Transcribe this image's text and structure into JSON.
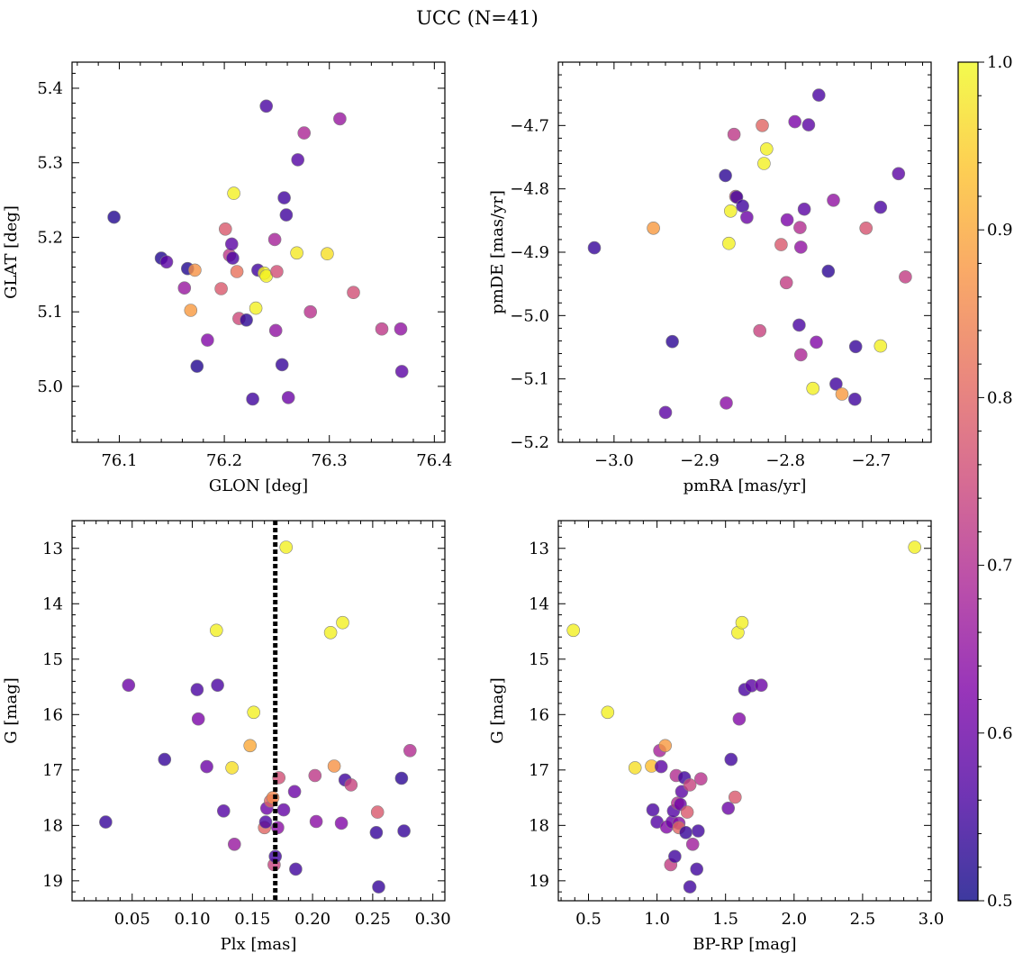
{
  "title": "UCC (N=41)",
  "colorbar": {
    "min": 0.5,
    "max": 1.0,
    "ticks": [
      0.5,
      0.6,
      0.7,
      0.8,
      0.9,
      1.0
    ],
    "tick_labels": [
      "0.5",
      "0.6",
      "0.7",
      "0.8",
      "0.9",
      "1.0"
    ],
    "colormap": "plasma"
  },
  "chart_data": [
    {
      "type": "scatter",
      "xlabel": "GLON [deg]",
      "ylabel": "GLAT [deg]",
      "xlim": [
        76.055,
        76.41
      ],
      "ylim": [
        4.925,
        5.435
      ],
      "y_inverted": false,
      "xticks": [
        76.1,
        76.2,
        76.3,
        76.4
      ],
      "xtick_labels": [
        "76.1",
        "76.2",
        "76.3",
        "76.4"
      ],
      "yticks": [
        5.0,
        5.1,
        5.2,
        5.3,
        5.4
      ],
      "ytick_labels": [
        "5.0",
        "5.1",
        "5.2",
        "5.3",
        "5.4"
      ],
      "points": [
        {
          "x": 76.095,
          "y": 5.227,
          "c": 0.52
        },
        {
          "x": 76.14,
          "y": 5.172,
          "c": 0.52
        },
        {
          "x": 76.145,
          "y": 5.167,
          "c": 0.58
        },
        {
          "x": 76.162,
          "y": 5.132,
          "c": 0.66
        },
        {
          "x": 76.165,
          "y": 5.158,
          "c": 0.52
        },
        {
          "x": 76.168,
          "y": 5.102,
          "c": 0.88
        },
        {
          "x": 76.172,
          "y": 5.156,
          "c": 0.87
        },
        {
          "x": 76.174,
          "y": 5.027,
          "c": 0.52
        },
        {
          "x": 76.184,
          "y": 5.062,
          "c": 0.63
        },
        {
          "x": 76.197,
          "y": 5.131,
          "c": 0.78
        },
        {
          "x": 76.201,
          "y": 5.211,
          "c": 0.78
        },
        {
          "x": 76.205,
          "y": 5.176,
          "c": 0.72
        },
        {
          "x": 76.207,
          "y": 5.191,
          "c": 0.58
        },
        {
          "x": 76.208,
          "y": 5.172,
          "c": 0.56
        },
        {
          "x": 76.209,
          "y": 5.259,
          "c": 0.99
        },
        {
          "x": 76.212,
          "y": 5.154,
          "c": 0.82
        },
        {
          "x": 76.214,
          "y": 5.091,
          "c": 0.75
        },
        {
          "x": 76.221,
          "y": 5.089,
          "c": 0.53
        },
        {
          "x": 76.227,
          "y": 4.983,
          "c": 0.55
        },
        {
          "x": 76.23,
          "y": 5.105,
          "c": 0.99
        },
        {
          "x": 76.232,
          "y": 5.156,
          "c": 0.55
        },
        {
          "x": 76.238,
          "y": 5.152,
          "c": 0.99
        },
        {
          "x": 76.24,
          "y": 5.148,
          "c": 0.99
        },
        {
          "x": 76.24,
          "y": 5.376,
          "c": 0.56
        },
        {
          "x": 76.248,
          "y": 5.197,
          "c": 0.68
        },
        {
          "x": 76.249,
          "y": 5.075,
          "c": 0.65
        },
        {
          "x": 76.25,
          "y": 5.154,
          "c": 0.76
        },
        {
          "x": 76.255,
          "y": 5.029,
          "c": 0.54
        },
        {
          "x": 76.257,
          "y": 5.253,
          "c": 0.55
        },
        {
          "x": 76.259,
          "y": 5.23,
          "c": 0.55
        },
        {
          "x": 76.261,
          "y": 4.985,
          "c": 0.6
        },
        {
          "x": 76.269,
          "y": 5.179,
          "c": 0.98
        },
        {
          "x": 76.27,
          "y": 5.304,
          "c": 0.57
        },
        {
          "x": 76.276,
          "y": 5.34,
          "c": 0.69
        },
        {
          "x": 76.282,
          "y": 5.1,
          "c": 0.71
        },
        {
          "x": 76.298,
          "y": 5.178,
          "c": 0.97
        },
        {
          "x": 76.31,
          "y": 5.359,
          "c": 0.66
        },
        {
          "x": 76.323,
          "y": 5.126,
          "c": 0.76
        },
        {
          "x": 76.35,
          "y": 5.077,
          "c": 0.72
        },
        {
          "x": 76.368,
          "y": 5.077,
          "c": 0.65
        },
        {
          "x": 76.369,
          "y": 5.02,
          "c": 0.58
        }
      ]
    },
    {
      "type": "scatter",
      "xlabel": "pmRA [mas/yr]",
      "ylabel": "pmDE [mas/yr]",
      "xlim": [
        -3.065,
        -2.63
      ],
      "ylim": [
        -5.2,
        -4.6
      ],
      "y_inverted": false,
      "xticks": [
        -3.0,
        -2.9,
        -2.8,
        -2.7
      ],
      "xtick_labels": [
        "−3.0",
        "−2.9",
        "−2.8",
        "−2.7"
      ],
      "yticks": [
        -5.2,
        -5.1,
        -5.0,
        -4.9,
        -4.8,
        -4.7
      ],
      "ytick_labels": [
        "−5.2",
        "−5.1",
        "−5.0",
        "−4.9",
        "−4.8",
        "−4.7"
      ],
      "points": [
        {
          "x": -3.023,
          "y": -4.893,
          "c": 0.54
        },
        {
          "x": -2.954,
          "y": -4.862,
          "c": 0.88
        },
        {
          "x": -2.94,
          "y": -5.153,
          "c": 0.58
        },
        {
          "x": -2.932,
          "y": -5.041,
          "c": 0.53
        },
        {
          "x": -2.87,
          "y": -4.779,
          "c": 0.53
        },
        {
          "x": -2.869,
          "y": -5.138,
          "c": 0.64
        },
        {
          "x": -2.866,
          "y": -4.886,
          "c": 0.99
        },
        {
          "x": -2.864,
          "y": -4.835,
          "c": 0.99
        },
        {
          "x": -2.86,
          "y": -4.714,
          "c": 0.72
        },
        {
          "x": -2.858,
          "y": -4.812,
          "c": 0.77
        },
        {
          "x": -2.857,
          "y": -4.813,
          "c": 0.55
        },
        {
          "x": -2.85,
          "y": -4.827,
          "c": 0.55
        },
        {
          "x": -2.845,
          "y": -4.845,
          "c": 0.6
        },
        {
          "x": -2.83,
          "y": -5.024,
          "c": 0.74
        },
        {
          "x": -2.827,
          "y": -4.7,
          "c": 0.8
        },
        {
          "x": -2.825,
          "y": -4.76,
          "c": 0.99
        },
        {
          "x": -2.822,
          "y": -4.737,
          "c": 0.99
        },
        {
          "x": -2.805,
          "y": -4.888,
          "c": 0.78
        },
        {
          "x": -2.799,
          "y": -4.948,
          "c": 0.73
        },
        {
          "x": -2.798,
          "y": -4.849,
          "c": 0.62
        },
        {
          "x": -2.789,
          "y": -4.694,
          "c": 0.62
        },
        {
          "x": -2.784,
          "y": -5.015,
          "c": 0.56
        },
        {
          "x": -2.783,
          "y": -4.861,
          "c": 0.7
        },
        {
          "x": -2.782,
          "y": -5.062,
          "c": 0.69
        },
        {
          "x": -2.782,
          "y": -4.892,
          "c": 0.65
        },
        {
          "x": -2.778,
          "y": -4.832,
          "c": 0.58
        },
        {
          "x": -2.773,
          "y": -4.699,
          "c": 0.58
        },
        {
          "x": -2.768,
          "y": -5.115,
          "c": 0.99
        },
        {
          "x": -2.764,
          "y": -5.042,
          "c": 0.63
        },
        {
          "x": -2.761,
          "y": -4.652,
          "c": 0.56
        },
        {
          "x": -2.75,
          "y": -4.93,
          "c": 0.53
        },
        {
          "x": -2.744,
          "y": -4.818,
          "c": 0.65
        },
        {
          "x": -2.741,
          "y": -5.108,
          "c": 0.55
        },
        {
          "x": -2.734,
          "y": -5.124,
          "c": 0.88
        },
        {
          "x": -2.719,
          "y": -5.132,
          "c": 0.55
        },
        {
          "x": -2.718,
          "y": -5.049,
          "c": 0.54
        },
        {
          "x": -2.706,
          "y": -4.862,
          "c": 0.77
        },
        {
          "x": -2.689,
          "y": -5.048,
          "c": 0.99
        },
        {
          "x": -2.689,
          "y": -4.829,
          "c": 0.56
        },
        {
          "x": -2.668,
          "y": -4.776,
          "c": 0.58
        },
        {
          "x": -2.66,
          "y": -4.939,
          "c": 0.73
        }
      ]
    },
    {
      "type": "scatter",
      "xlabel": "Plx [mas]",
      "ylabel": "G [mag]",
      "xlim": [
        0.0,
        0.31
      ],
      "ylim": [
        19.36,
        12.5
      ],
      "y_inverted": true,
      "xticks": [
        0.05,
        0.1,
        0.15,
        0.2,
        0.25,
        0.3
      ],
      "xtick_labels": [
        "0.05",
        "0.10",
        "0.15",
        "0.20",
        "0.25",
        "0.30"
      ],
      "yticks": [
        13,
        14,
        15,
        16,
        17,
        18,
        19
      ],
      "ytick_labels": [
        "13",
        "14",
        "15",
        "16",
        "17",
        "18",
        "19"
      ],
      "vline": {
        "x": 0.169
      },
      "points": [
        {
          "x": 0.028,
          "y": 17.94,
          "c": 0.54
        },
        {
          "x": 0.047,
          "y": 15.47,
          "c": 0.6
        },
        {
          "x": 0.077,
          "y": 16.81,
          "c": 0.54
        },
        {
          "x": 0.104,
          "y": 15.55,
          "c": 0.56
        },
        {
          "x": 0.105,
          "y": 16.08,
          "c": 0.62
        },
        {
          "x": 0.112,
          "y": 16.94,
          "c": 0.6
        },
        {
          "x": 0.12,
          "y": 14.48,
          "c": 0.99
        },
        {
          "x": 0.121,
          "y": 15.47,
          "c": 0.56
        },
        {
          "x": 0.126,
          "y": 17.74,
          "c": 0.57
        },
        {
          "x": 0.133,
          "y": 16.96,
          "c": 0.97
        },
        {
          "x": 0.135,
          "y": 18.34,
          "c": 0.66
        },
        {
          "x": 0.148,
          "y": 16.56,
          "c": 0.9
        },
        {
          "x": 0.151,
          "y": 15.96,
          "c": 0.99
        },
        {
          "x": 0.16,
          "y": 18.04,
          "c": 0.8
        },
        {
          "x": 0.161,
          "y": 17.94,
          "c": 0.56
        },
        {
          "x": 0.162,
          "y": 17.69,
          "c": 0.6
        },
        {
          "x": 0.165,
          "y": 17.56,
          "c": 0.8
        },
        {
          "x": 0.167,
          "y": 17.5,
          "c": 0.85
        },
        {
          "x": 0.168,
          "y": 18.71,
          "c": 0.74
        },
        {
          "x": 0.169,
          "y": 18.56,
          "c": 0.55
        },
        {
          "x": 0.171,
          "y": 18.04,
          "c": 0.64
        },
        {
          "x": 0.172,
          "y": 17.14,
          "c": 0.76
        },
        {
          "x": 0.176,
          "y": 17.72,
          "c": 0.59
        },
        {
          "x": 0.178,
          "y": 12.98,
          "c": 0.99
        },
        {
          "x": 0.185,
          "y": 17.39,
          "c": 0.6
        },
        {
          "x": 0.186,
          "y": 18.79,
          "c": 0.55
        },
        {
          "x": 0.202,
          "y": 17.1,
          "c": 0.72
        },
        {
          "x": 0.203,
          "y": 17.93,
          "c": 0.64
        },
        {
          "x": 0.215,
          "y": 14.52,
          "c": 0.99
        },
        {
          "x": 0.218,
          "y": 16.93,
          "c": 0.87
        },
        {
          "x": 0.224,
          "y": 17.96,
          "c": 0.63
        },
        {
          "x": 0.225,
          "y": 14.34,
          "c": 0.99
        },
        {
          "x": 0.227,
          "y": 17.18,
          "c": 0.55
        },
        {
          "x": 0.232,
          "y": 17.27,
          "c": 0.74
        },
        {
          "x": 0.253,
          "y": 18.13,
          "c": 0.54
        },
        {
          "x": 0.254,
          "y": 17.76,
          "c": 0.78
        },
        {
          "x": 0.255,
          "y": 19.11,
          "c": 0.54
        },
        {
          "x": 0.274,
          "y": 17.15,
          "c": 0.53
        },
        {
          "x": 0.276,
          "y": 18.1,
          "c": 0.54
        },
        {
          "x": 0.281,
          "y": 16.65,
          "c": 0.7
        }
      ]
    },
    {
      "type": "scatter",
      "xlabel": "BP-RP [mag]",
      "ylabel": "G [mag]",
      "xlim": [
        0.28,
        3.0
      ],
      "ylim": [
        19.36,
        12.5
      ],
      "y_inverted": true,
      "xticks": [
        0.5,
        1.0,
        1.5,
        2.0,
        2.5,
        3.0
      ],
      "xtick_labels": [
        "0.5",
        "1.0",
        "1.5",
        "2.0",
        "2.5",
        "3.0"
      ],
      "yticks": [
        13,
        14,
        15,
        16,
        17,
        18,
        19
      ],
      "ytick_labels": [
        "13",
        "14",
        "15",
        "16",
        "17",
        "18",
        "19"
      ],
      "points": [
        {
          "x": 0.39,
          "y": 14.48,
          "c": 0.99
        },
        {
          "x": 0.64,
          "y": 15.96,
          "c": 0.99
        },
        {
          "x": 0.84,
          "y": 16.96,
          "c": 0.97
        },
        {
          "x": 0.96,
          "y": 16.93,
          "c": 0.93
        },
        {
          "x": 0.97,
          "y": 17.72,
          "c": 0.56
        },
        {
          "x": 1.0,
          "y": 17.94,
          "c": 0.57
        },
        {
          "x": 1.02,
          "y": 16.65,
          "c": 0.68
        },
        {
          "x": 1.03,
          "y": 16.94,
          "c": 0.58
        },
        {
          "x": 1.06,
          "y": 16.56,
          "c": 0.88
        },
        {
          "x": 1.07,
          "y": 18.03,
          "c": 0.63
        },
        {
          "x": 1.1,
          "y": 18.71,
          "c": 0.73
        },
        {
          "x": 1.11,
          "y": 17.94,
          "c": 0.6
        },
        {
          "x": 1.12,
          "y": 17.74,
          "c": 0.57
        },
        {
          "x": 1.13,
          "y": 18.56,
          "c": 0.55
        },
        {
          "x": 1.14,
          "y": 17.1,
          "c": 0.7
        },
        {
          "x": 1.15,
          "y": 17.6,
          "c": 0.7
        },
        {
          "x": 1.16,
          "y": 17.96,
          "c": 0.64
        },
        {
          "x": 1.16,
          "y": 18.04,
          "c": 0.8
        },
        {
          "x": 1.17,
          "y": 17.62,
          "c": 0.6
        },
        {
          "x": 1.18,
          "y": 17.39,
          "c": 0.58
        },
        {
          "x": 1.2,
          "y": 17.14,
          "c": 0.55
        },
        {
          "x": 1.21,
          "y": 18.13,
          "c": 0.54
        },
        {
          "x": 1.22,
          "y": 17.76,
          "c": 0.78
        },
        {
          "x": 1.24,
          "y": 19.11,
          "c": 0.55
        },
        {
          "x": 1.24,
          "y": 17.27,
          "c": 0.74
        },
        {
          "x": 1.26,
          "y": 18.34,
          "c": 0.67
        },
        {
          "x": 1.29,
          "y": 18.79,
          "c": 0.55
        },
        {
          "x": 1.3,
          "y": 18.1,
          "c": 0.55
        },
        {
          "x": 1.32,
          "y": 17.16,
          "c": 0.71
        },
        {
          "x": 1.52,
          "y": 17.69,
          "c": 0.6
        },
        {
          "x": 1.54,
          "y": 16.81,
          "c": 0.55
        },
        {
          "x": 1.57,
          "y": 17.49,
          "c": 0.78
        },
        {
          "x": 1.59,
          "y": 14.52,
          "c": 0.99
        },
        {
          "x": 1.6,
          "y": 16.08,
          "c": 0.63
        },
        {
          "x": 1.62,
          "y": 14.34,
          "c": 0.99
        },
        {
          "x": 1.64,
          "y": 15.55,
          "c": 0.56
        },
        {
          "x": 1.69,
          "y": 15.48,
          "c": 0.58
        },
        {
          "x": 1.76,
          "y": 15.47,
          "c": 0.6
        },
        {
          "x": 2.88,
          "y": 12.98,
          "c": 0.99
        }
      ]
    }
  ]
}
